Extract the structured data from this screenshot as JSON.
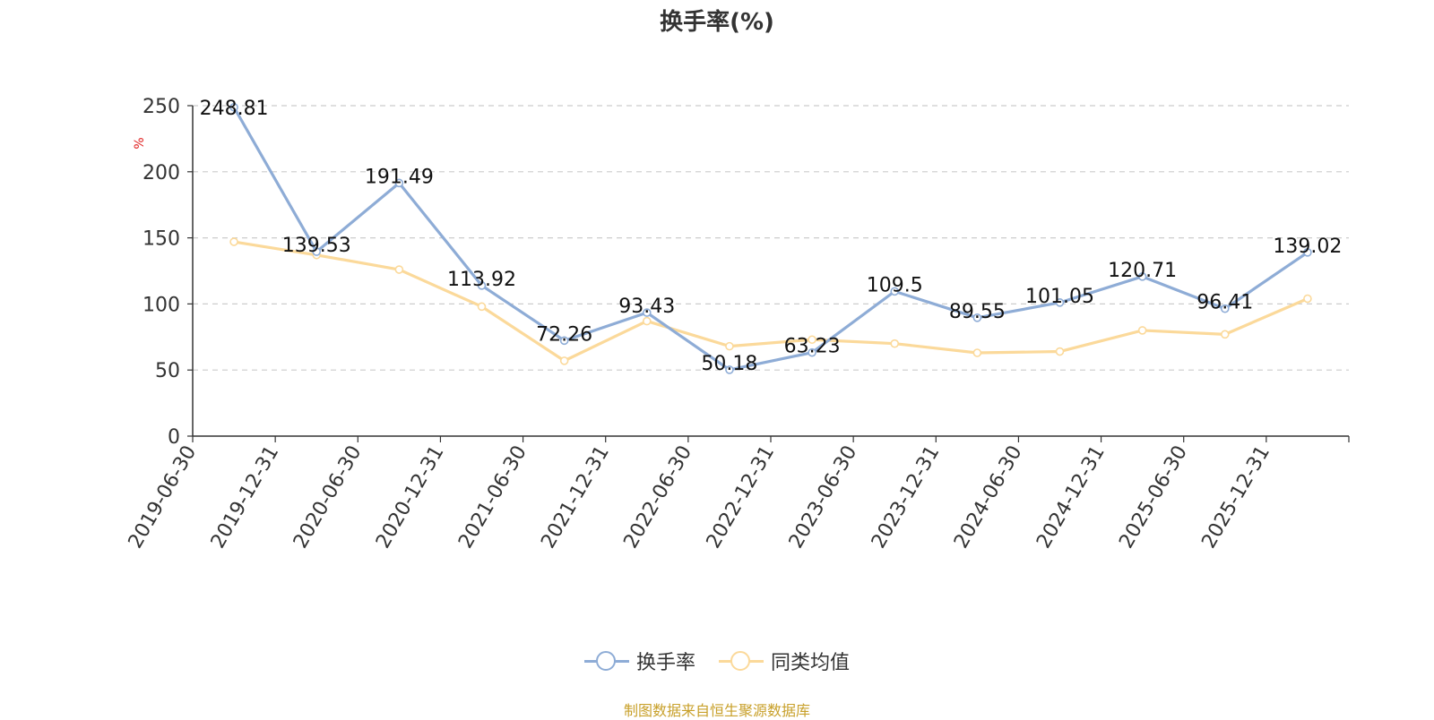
{
  "chart_data": {
    "type": "line",
    "title": "换手率(%)",
    "ylabel": "%",
    "ylim": [
      0,
      250
    ],
    "yticks": [
      0,
      50,
      100,
      150,
      200,
      250
    ],
    "grid": true,
    "legend_position": "bottom",
    "categories": [
      "2019-06-30",
      "2019-12-31",
      "2020-06-30",
      "2020-12-31",
      "2021-06-30",
      "2021-12-31",
      "2022-06-30",
      "2022-12-31",
      "2023-06-30",
      "2023-12-31",
      "2024-06-30",
      "2024-12-31",
      "2025-06-30",
      "2025-12-31"
    ],
    "series": [
      {
        "name": "换手率",
        "color": "#8eacd6",
        "values": [
          248.81,
          139.53,
          191.49,
          113.92,
          72.26,
          93.43,
          50.18,
          63.23,
          109.5,
          89.55,
          101.05,
          120.71,
          96.41,
          139.02
        ],
        "labels": [
          "248.81",
          "139.53",
          "191.49",
          "113.92",
          "72.26",
          "93.43",
          "50.18",
          "63.23",
          "109.5",
          "89.55",
          "101.05",
          "120.71",
          "96.41",
          "139.02"
        ]
      },
      {
        "name": "同类均值",
        "color": "#fbd99a",
        "values": [
          147,
          137,
          126,
          98,
          57,
          87,
          68,
          73,
          70,
          63,
          64,
          80,
          77,
          104
        ]
      }
    ]
  },
  "source": "制图数据来自恒生聚源数据库"
}
